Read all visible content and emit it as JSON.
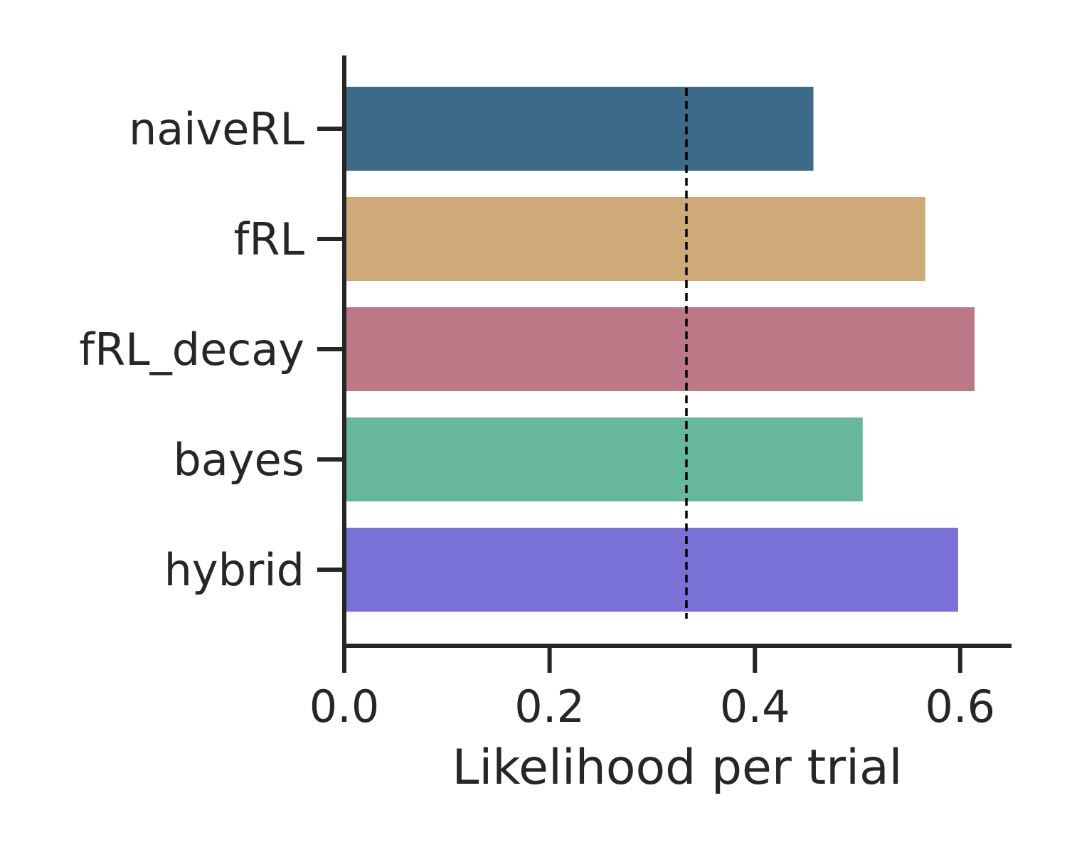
{
  "chart_data": {
    "type": "bar",
    "orientation": "horizontal",
    "categories": [
      "naiveRL",
      "fRL",
      "fRL_decay",
      "bayes",
      "hybrid"
    ],
    "values": [
      0.457,
      0.566,
      0.614,
      0.505,
      0.598
    ],
    "colors": [
      "#3c6a88",
      "#cdaa77",
      "#bd7888",
      "#67b79e",
      "#7971d5"
    ],
    "title": "",
    "xlabel": "Likelihood per trial",
    "ylabel": "",
    "xlim": [
      0.0,
      0.65
    ],
    "xticks": [
      0.0,
      0.2,
      0.4,
      0.6
    ],
    "xtick_labels": [
      "0.0",
      "0.2",
      "0.4",
      "0.6"
    ],
    "reference_line": {
      "x": 0.3333,
      "style": "dashed",
      "color": "#000000"
    },
    "grid": false,
    "legend": "none"
  }
}
